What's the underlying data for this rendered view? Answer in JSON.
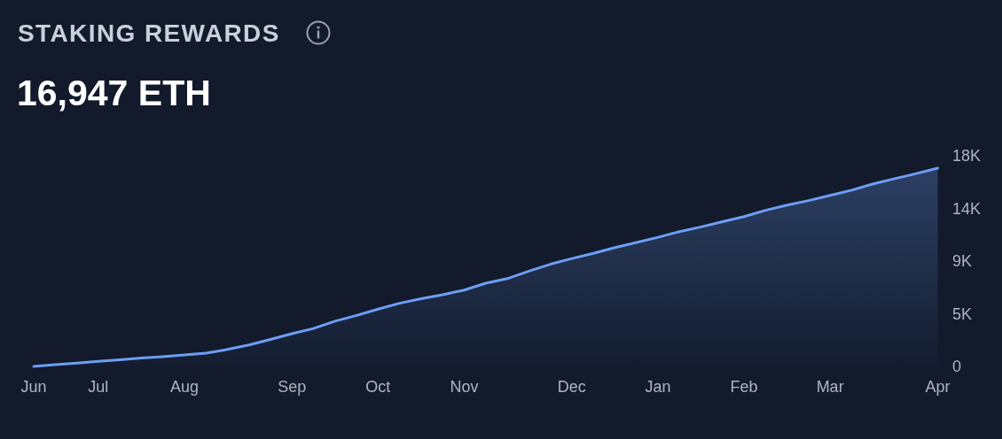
{
  "chart_data": {
    "type": "area",
    "title": "STAKING REWARDS",
    "subtitle": "16,947 ETH",
    "categories": [
      "Jun",
      null,
      null,
      "Jul",
      null,
      null,
      null,
      "Aug",
      null,
      null,
      null,
      null,
      "Sep",
      null,
      null,
      null,
      "Oct",
      null,
      null,
      null,
      "Nov",
      null,
      null,
      null,
      null,
      "Dec",
      null,
      null,
      null,
      "Jan",
      null,
      null,
      null,
      "Feb",
      null,
      null,
      null,
      "Mar",
      null,
      null,
      null,
      null,
      "Apr"
    ],
    "values": [
      0,
      150,
      290,
      430,
      570,
      710,
      840,
      980,
      1130,
      1450,
      1830,
      2310,
      2800,
      3240,
      3870,
      4360,
      4900,
      5400,
      5790,
      6130,
      6520,
      7110,
      7500,
      8140,
      8730,
      9220,
      9660,
      10150,
      10590,
      11030,
      11520,
      11920,
      12360,
      12800,
      13340,
      13780,
      14170,
      14620,
      15060,
      15600,
      16040,
      16480,
      16947
    ],
    "color": "#6d9ef5",
    "ylim": [
      0,
      18000
    ],
    "yticks": [
      0,
      {
        "value": 4500,
        "label": "5K"
      },
      {
        "value": 9000,
        "label": "9K"
      },
      {
        "value": 13500,
        "label": "14K"
      },
      {
        "value": 18000,
        "label": "18K"
      }
    ]
  }
}
